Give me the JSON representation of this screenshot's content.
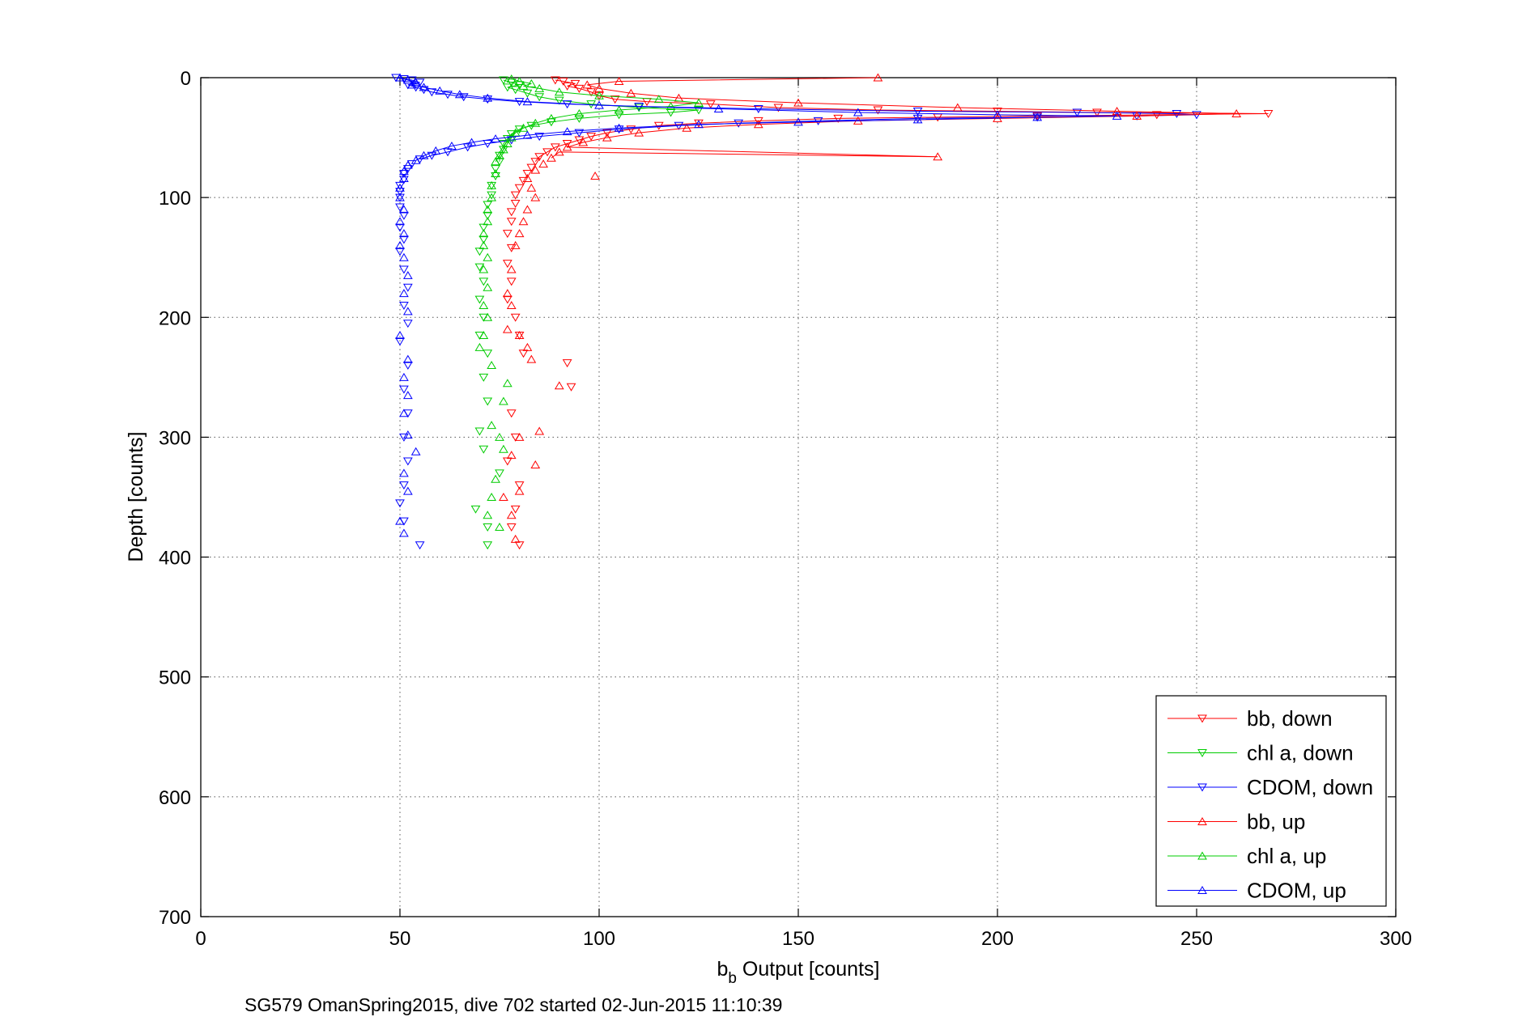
{
  "chart_data": {
    "type": "scatter",
    "xlabel_main": "b",
    "xlabel_sub": "b",
    "xlabel_rest": " Output [counts]",
    "ylabel": "Depth [counts]",
    "caption": "SG579 OmanSpring2015, dive 702 started 02-Jun-2015 11:10:39",
    "xlim": [
      0,
      300
    ],
    "ylim": [
      0,
      700
    ],
    "y_reversed": true,
    "grid": true,
    "x_ticks": [
      "0",
      "50",
      "100",
      "150",
      "200",
      "250",
      "300"
    ],
    "y_ticks": [
      "0",
      "100",
      "200",
      "300",
      "400",
      "500",
      "600",
      "700"
    ],
    "legend_position": "bottom-right",
    "series": [
      {
        "name": "bb, down",
        "color": "#ff0000",
        "marker": "triangle-down",
        "points": [
          [
            89,
            2
          ],
          [
            91,
            3
          ],
          [
            94,
            5
          ],
          [
            92,
            7
          ],
          [
            95,
            9
          ],
          [
            98,
            12
          ],
          [
            100,
            15
          ],
          [
            104,
            18
          ],
          [
            112,
            20
          ],
          [
            128,
            22
          ],
          [
            145,
            25
          ],
          [
            170,
            27
          ],
          [
            200,
            28
          ],
          [
            225,
            29
          ],
          [
            268,
            30
          ],
          [
            240,
            31
          ],
          [
            210,
            32
          ],
          [
            185,
            33
          ],
          [
            160,
            34
          ],
          [
            140,
            36
          ],
          [
            125,
            38
          ],
          [
            115,
            40
          ],
          [
            108,
            43
          ],
          [
            102,
            46
          ],
          [
            98,
            49
          ],
          [
            95,
            52
          ],
          [
            92,
            55
          ],
          [
            89,
            58
          ],
          [
            87,
            62
          ],
          [
            85,
            66
          ],
          [
            84,
            70
          ],
          [
            83,
            75
          ],
          [
            82,
            80
          ],
          [
            81,
            86
          ],
          [
            80,
            92
          ],
          [
            79,
            98
          ],
          [
            79,
            105
          ],
          [
            78,
            112
          ],
          [
            78,
            120
          ],
          [
            77,
            130
          ],
          [
            78,
            142
          ],
          [
            77,
            155
          ],
          [
            78,
            170
          ],
          [
            77,
            185
          ],
          [
            79,
            200
          ],
          [
            80,
            215
          ],
          [
            81,
            230
          ],
          [
            92,
            238
          ],
          [
            93,
            258
          ],
          [
            78,
            280
          ],
          [
            79,
            300
          ],
          [
            77,
            320
          ],
          [
            80,
            340
          ],
          [
            79,
            360
          ],
          [
            78,
            375
          ],
          [
            80,
            390
          ]
        ]
      },
      {
        "name": "chl a, down",
        "color": "#00cc00",
        "marker": "triangle-down",
        "points": [
          [
            76,
            2
          ],
          [
            78,
            4
          ],
          [
            80,
            6
          ],
          [
            77,
            8
          ],
          [
            79,
            10
          ],
          [
            82,
            13
          ],
          [
            85,
            16
          ],
          [
            90,
            19
          ],
          [
            98,
            22
          ],
          [
            110,
            25
          ],
          [
            125,
            27
          ],
          [
            118,
            29
          ],
          [
            105,
            31
          ],
          [
            95,
            34
          ],
          [
            88,
            37
          ],
          [
            83,
            40
          ],
          [
            80,
            43
          ],
          [
            78,
            47
          ],
          [
            77,
            51
          ],
          [
            76,
            55
          ],
          [
            76,
            60
          ],
          [
            75,
            65
          ],
          [
            75,
            70
          ],
          [
            74,
            76
          ],
          [
            74,
            82
          ],
          [
            73,
            90
          ],
          [
            73,
            98
          ],
          [
            72,
            106
          ],
          [
            72,
            115
          ],
          [
            71,
            125
          ],
          [
            71,
            135
          ],
          [
            70,
            145
          ],
          [
            70,
            158
          ],
          [
            71,
            170
          ],
          [
            70,
            185
          ],
          [
            71,
            200
          ],
          [
            70,
            215
          ],
          [
            72,
            230
          ],
          [
            71,
            250
          ],
          [
            72,
            270
          ],
          [
            70,
            295
          ],
          [
            71,
            310
          ],
          [
            75,
            330
          ],
          [
            69,
            360
          ],
          [
            72,
            375
          ],
          [
            72,
            390
          ]
        ]
      },
      {
        "name": "CDOM, down",
        "color": "#0000ff",
        "marker": "triangle-down",
        "points": [
          [
            49,
            0
          ],
          [
            51,
            1
          ],
          [
            53,
            2
          ],
          [
            55,
            4
          ],
          [
            52,
            6
          ],
          [
            54,
            8
          ],
          [
            56,
            10
          ],
          [
            58,
            12
          ],
          [
            62,
            14
          ],
          [
            66,
            16
          ],
          [
            72,
            18
          ],
          [
            80,
            20
          ],
          [
            92,
            22
          ],
          [
            110,
            24
          ],
          [
            140,
            26
          ],
          [
            180,
            28
          ],
          [
            220,
            29
          ],
          [
            245,
            30
          ],
          [
            250,
            31
          ],
          [
            235,
            32
          ],
          [
            210,
            33
          ],
          [
            180,
            34
          ],
          [
            155,
            36
          ],
          [
            135,
            38
          ],
          [
            120,
            40
          ],
          [
            105,
            43
          ],
          [
            95,
            46
          ],
          [
            85,
            49
          ],
          [
            78,
            52
          ],
          [
            72,
            55
          ],
          [
            67,
            58
          ],
          [
            62,
            62
          ],
          [
            58,
            65
          ],
          [
            55,
            68
          ],
          [
            53,
            72
          ],
          [
            52,
            76
          ],
          [
            51,
            80
          ],
          [
            51,
            85
          ],
          [
            50,
            90
          ],
          [
            50,
            95
          ],
          [
            50,
            100
          ],
          [
            50,
            108
          ],
          [
            51,
            115
          ],
          [
            50,
            125
          ],
          [
            51,
            135
          ],
          [
            50,
            145
          ],
          [
            51,
            160
          ],
          [
            52,
            175
          ],
          [
            51,
            190
          ],
          [
            52,
            205
          ],
          [
            50,
            220
          ],
          [
            52,
            240
          ],
          [
            51,
            260
          ],
          [
            52,
            280
          ],
          [
            51,
            300
          ],
          [
            52,
            320
          ],
          [
            51,
            340
          ],
          [
            50,
            355
          ],
          [
            51,
            370
          ],
          [
            55,
            390
          ]
        ]
      },
      {
        "name": "bb, up",
        "color": "#ff0000",
        "marker": "triangle-up",
        "points": [
          [
            170,
            0
          ],
          [
            105,
            3
          ],
          [
            97,
            6
          ],
          [
            100,
            9
          ],
          [
            108,
            13
          ],
          [
            120,
            17
          ],
          [
            150,
            21
          ],
          [
            190,
            25
          ],
          [
            230,
            28
          ],
          [
            260,
            30
          ],
          [
            235,
            32
          ],
          [
            200,
            34
          ],
          [
            165,
            36
          ],
          [
            140,
            39
          ],
          [
            122,
            42
          ],
          [
            110,
            46
          ],
          [
            102,
            50
          ],
          [
            96,
            54
          ],
          [
            92,
            58
          ],
          [
            185,
            66
          ],
          [
            90,
            62
          ],
          [
            88,
            67
          ],
          [
            86,
            72
          ],
          [
            84,
            77
          ],
          [
            99,
            82
          ],
          [
            82,
            84
          ],
          [
            83,
            92
          ],
          [
            84,
            100
          ],
          [
            82,
            110
          ],
          [
            81,
            120
          ],
          [
            80,
            130
          ],
          [
            79,
            140
          ],
          [
            78,
            160
          ],
          [
            77,
            180
          ],
          [
            78,
            190
          ],
          [
            77,
            210
          ],
          [
            80,
            215
          ],
          [
            82,
            225
          ],
          [
            83,
            235
          ],
          [
            90,
            257
          ],
          [
            85,
            295
          ],
          [
            80,
            300
          ],
          [
            78,
            315
          ],
          [
            84,
            323
          ],
          [
            80,
            345
          ],
          [
            76,
            350
          ],
          [
            78,
            365
          ],
          [
            79,
            385
          ]
        ]
      },
      {
        "name": "chl a, up",
        "color": "#00cc00",
        "marker": "triangle-up",
        "points": [
          [
            78,
            1
          ],
          [
            80,
            3
          ],
          [
            83,
            5
          ],
          [
            81,
            7
          ],
          [
            85,
            9
          ],
          [
            90,
            12
          ],
          [
            100,
            15
          ],
          [
            115,
            18
          ],
          [
            125,
            21
          ],
          [
            118,
            24
          ],
          [
            105,
            27
          ],
          [
            95,
            30
          ],
          [
            88,
            34
          ],
          [
            84,
            38
          ],
          [
            81,
            42
          ],
          [
            79,
            46
          ],
          [
            78,
            50
          ],
          [
            77,
            55
          ],
          [
            76,
            60
          ],
          [
            75,
            65
          ],
          [
            74,
            70
          ],
          [
            74,
            80
          ],
          [
            73,
            90
          ],
          [
            73,
            100
          ],
          [
            72,
            110
          ],
          [
            72,
            120
          ],
          [
            71,
            130
          ],
          [
            71,
            140
          ],
          [
            72,
            150
          ],
          [
            71,
            160
          ],
          [
            72,
            175
          ],
          [
            71,
            190
          ],
          [
            72,
            200
          ],
          [
            71,
            215
          ],
          [
            70,
            225
          ],
          [
            73,
            240
          ],
          [
            77,
            255
          ],
          [
            76,
            270
          ],
          [
            73,
            290
          ],
          [
            75,
            300
          ],
          [
            76,
            310
          ],
          [
            74,
            335
          ],
          [
            73,
            350
          ],
          [
            72,
            365
          ],
          [
            75,
            375
          ]
        ]
      },
      {
        "name": "CDOM, up",
        "color": "#0000ff",
        "marker": "triangle-up",
        "points": [
          [
            50,
            0
          ],
          [
            52,
            2
          ],
          [
            54,
            4
          ],
          [
            53,
            6
          ],
          [
            56,
            8
          ],
          [
            60,
            11
          ],
          [
            65,
            14
          ],
          [
            72,
            17
          ],
          [
            82,
            20
          ],
          [
            100,
            23
          ],
          [
            130,
            26
          ],
          [
            165,
            29
          ],
          [
            200,
            31
          ],
          [
            230,
            32
          ],
          [
            210,
            33
          ],
          [
            180,
            35
          ],
          [
            150,
            37
          ],
          [
            125,
            39
          ],
          [
            105,
            42
          ],
          [
            92,
            45
          ],
          [
            82,
            48
          ],
          [
            74,
            51
          ],
          [
            68,
            54
          ],
          [
            63,
            57
          ],
          [
            59,
            61
          ],
          [
            56,
            65
          ],
          [
            54,
            69
          ],
          [
            52,
            73
          ],
          [
            51,
            78
          ],
          [
            51,
            84
          ],
          [
            50,
            92
          ],
          [
            50,
            100
          ],
          [
            51,
            110
          ],
          [
            50,
            120
          ],
          [
            51,
            130
          ],
          [
            50,
            140
          ],
          [
            51,
            150
          ],
          [
            52,
            165
          ],
          [
            51,
            180
          ],
          [
            52,
            195
          ],
          [
            50,
            215
          ],
          [
            52,
            235
          ],
          [
            51,
            250
          ],
          [
            52,
            265
          ],
          [
            51,
            280
          ],
          [
            52,
            298
          ],
          [
            54,
            312
          ],
          [
            51,
            330
          ],
          [
            52,
            345
          ],
          [
            50,
            370
          ],
          [
            51,
            380
          ]
        ]
      }
    ]
  }
}
